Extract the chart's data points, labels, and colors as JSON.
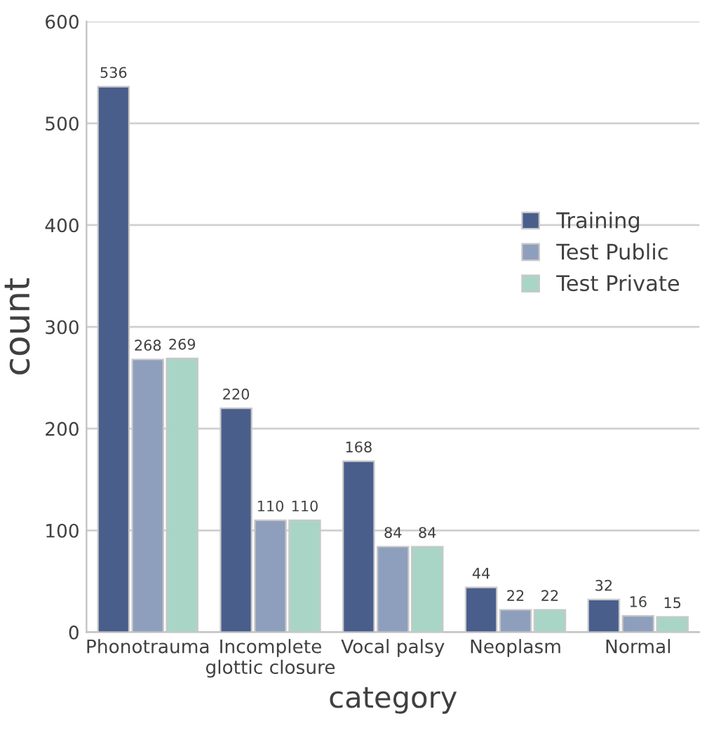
{
  "chart_data": {
    "type": "bar",
    "xlabel": "category",
    "ylabel": "count",
    "categories": [
      "Phonotrauma",
      "Incomplete\nglottic closure",
      "Vocal palsy",
      "Neoplasm",
      "Normal"
    ],
    "series": [
      {
        "name": "Training",
        "color": "#4a5e8c",
        "values": [
          536,
          220,
          168,
          44,
          32
        ]
      },
      {
        "name": "Test Public",
        "color": "#8e9fbd",
        "values": [
          268,
          110,
          84,
          22,
          16
        ]
      },
      {
        "name": "Test Private",
        "color": "#a9d5c7",
        "values": [
          269,
          110,
          84,
          22,
          15
        ]
      }
    ],
    "ylim": [
      0,
      600
    ],
    "yticks": [
      0,
      100,
      200,
      300,
      400,
      500,
      600
    ],
    "grid": "y",
    "legend": "right",
    "data_labels": true
  }
}
